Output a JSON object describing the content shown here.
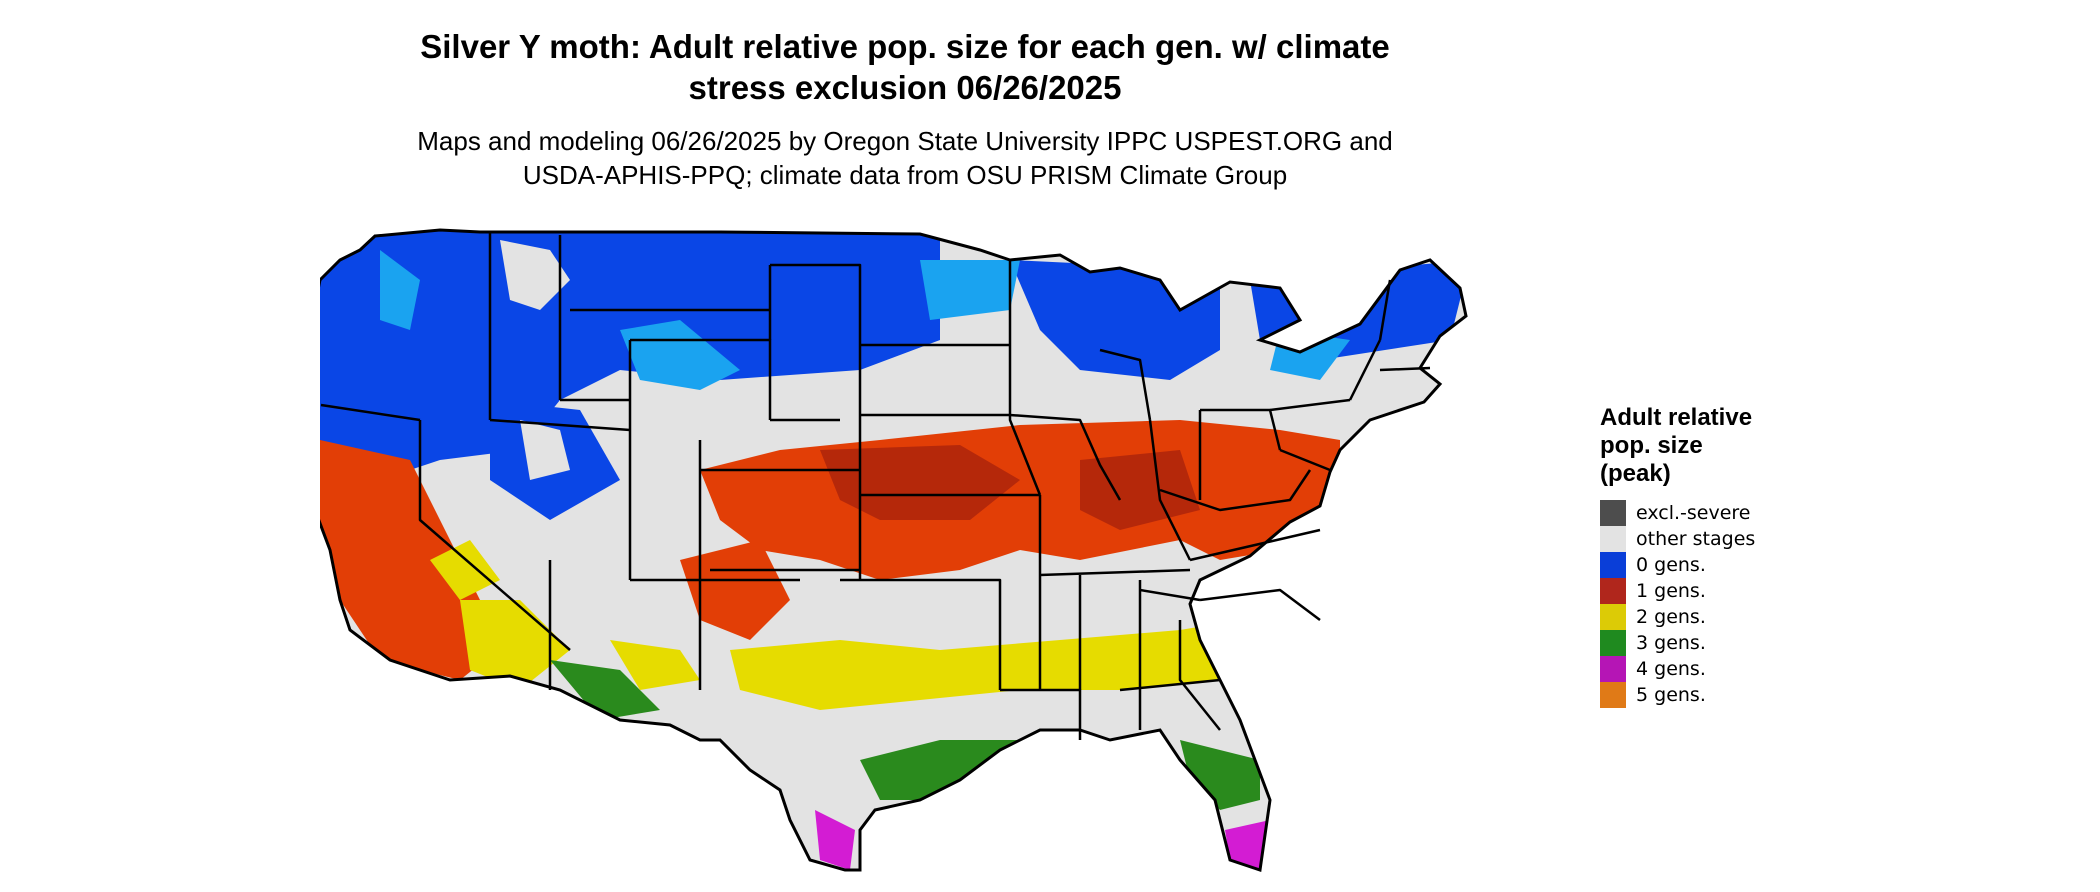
{
  "title_line1": "Silver Y moth: Adult relative pop. size for each gen. w/ climate",
  "title_line2": "stress exclusion 06/26/2025",
  "subtitle_line1": "Maps and modeling 06/26/2025 by Oregon State University IPPC USPEST.ORG and",
  "subtitle_line2": "USDA-APHIS-PPQ; climate data from OSU PRISM Climate Group",
  "legend": {
    "title_line1": "Adult relative",
    "title_line2": "pop. size",
    "title_line3": "(peak)",
    "items": [
      {
        "label": "excl.-severe",
        "color": "#4d4d4d"
      },
      {
        "label": "other stages",
        "color": "#e3e3e3"
      },
      {
        "label": "0 gens.",
        "color": "#0a3ed8"
      },
      {
        "label": "1 gens.",
        "color": "#b0261c"
      },
      {
        "label": "2 gens.",
        "color": "#dccb06"
      },
      {
        "label": "3 gens.",
        "color": "#1f8a1f"
      },
      {
        "label": "4 gens.",
        "color": "#b515b5"
      },
      {
        "label": "5 gens.",
        "color": "#e07a17"
      }
    ]
  },
  "map_colors": {
    "zero_gens": "#0a46e6",
    "zero_gens_light": "#1aa3f0",
    "one_gen": "#e23e06",
    "one_gen_dark": "#b5280a",
    "two_gens": "#e6dc00",
    "three_gens": "#2a8a1d",
    "four_gens": "#d31cd3",
    "other_stages": "#e3e3e3",
    "border": "#000000"
  }
}
